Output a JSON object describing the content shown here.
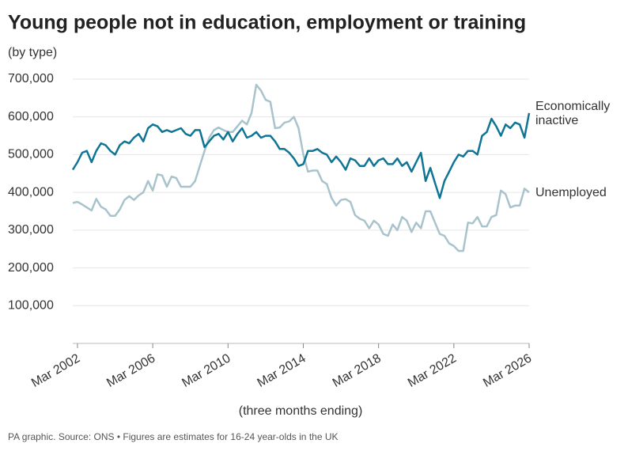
{
  "chart_data": {
    "type": "line",
    "title": "Young people not in education, employment or training",
    "subtitle": "(by type)",
    "x_label": "(three months ending)",
    "footer": "PA graphic. Source: ONS • Figures are estimates for 16-24 year-olds in the UK",
    "categories": [
      null,
      "Mar 2002",
      null,
      null,
      null,
      null,
      null,
      null,
      null,
      null,
      null,
      null,
      null,
      null,
      null,
      null,
      null,
      "Mar 2006",
      null,
      null,
      null,
      null,
      null,
      null,
      null,
      null,
      null,
      null,
      null,
      null,
      null,
      null,
      null,
      "Mar 2010",
      null,
      null,
      null,
      null,
      null,
      null,
      null,
      null,
      null,
      null,
      null,
      null,
      null,
      null,
      null,
      "Mar 2014",
      null,
      null,
      null,
      null,
      null,
      null,
      null,
      null,
      null,
      null,
      null,
      null,
      null,
      null,
      null,
      "Mar 2018",
      null,
      null,
      null,
      null,
      null,
      null,
      null,
      null,
      null,
      null,
      null,
      null,
      null,
      null,
      null,
      "Mar 2022",
      null,
      null,
      null,
      null,
      null,
      null,
      null,
      null,
      null,
      null,
      null,
      null,
      null,
      null,
      null,
      "Mar 2026"
    ],
    "series": [
      {
        "name": "Economically inactive",
        "color": "#0e7594",
        "values": [
          460000,
          480000,
          505000,
          510000,
          480000,
          510000,
          530000,
          525000,
          510000,
          500000,
          525000,
          535000,
          530000,
          545000,
          555000,
          535000,
          570000,
          580000,
          575000,
          560000,
          565000,
          560000,
          565000,
          570000,
          555000,
          550000,
          565000,
          565000,
          520000,
          535000,
          550000,
          555000,
          540000,
          560000,
          535000,
          555000,
          570000,
          545000,
          550000,
          560000,
          545000,
          550000,
          550000,
          535000,
          515000,
          515000,
          505000,
          490000,
          470000,
          475000,
          510000,
          510000,
          515000,
          505000,
          500000,
          480000,
          495000,
          480000,
          460000,
          490000,
          485000,
          470000,
          470000,
          490000,
          470000,
          485000,
          490000,
          475000,
          475000,
          490000,
          470000,
          480000,
          455000,
          480000,
          505000,
          430000,
          465000,
          425000,
          385000,
          430000,
          455000,
          480000,
          500000,
          495000,
          510000,
          510000,
          500000,
          550000,
          560000,
          595000,
          575000,
          550000,
          580000,
          570000,
          585000,
          580000,
          545000,
          610000
        ]
      },
      {
        "name": "Unemployed",
        "color": "#a9c3cc",
        "values": [
          372000,
          375000,
          368000,
          360000,
          352000,
          383000,
          362000,
          355000,
          338000,
          338000,
          355000,
          380000,
          390000,
          380000,
          392000,
          400000,
          430000,
          405000,
          448000,
          445000,
          415000,
          442000,
          438000,
          415000,
          415000,
          415000,
          430000,
          470000,
          510000,
          545000,
          565000,
          572000,
          565000,
          560000,
          560000,
          575000,
          590000,
          580000,
          610000,
          685000,
          670000,
          645000,
          640000,
          570000,
          572000,
          585000,
          588000,
          600000,
          570000,
          500000,
          455000,
          458000,
          458000,
          430000,
          422000,
          385000,
          365000,
          380000,
          382000,
          375000,
          340000,
          330000,
          325000,
          305000,
          325000,
          315000,
          290000,
          285000,
          315000,
          300000,
          335000,
          325000,
          295000,
          320000,
          305000,
          350000,
          350000,
          320000,
          290000,
          285000,
          265000,
          258000,
          245000,
          245000,
          320000,
          318000,
          335000,
          310000,
          310000,
          335000,
          340000,
          405000,
          395000,
          360000,
          365000,
          365000,
          410000,
          400000
        ]
      }
    ],
    "ylim": [
      0,
      700000
    ],
    "yticks": [
      {
        "value": 100000,
        "label": "100,000"
      },
      {
        "value": 200000,
        "label": "200,000"
      },
      {
        "value": 300000,
        "label": "300,000"
      },
      {
        "value": 400000,
        "label": "400,000"
      },
      {
        "value": 500000,
        "label": "500,000"
      },
      {
        "value": 600000,
        "label": "600,000"
      },
      {
        "value": 700000,
        "label": "700,000"
      }
    ],
    "grid": true
  }
}
